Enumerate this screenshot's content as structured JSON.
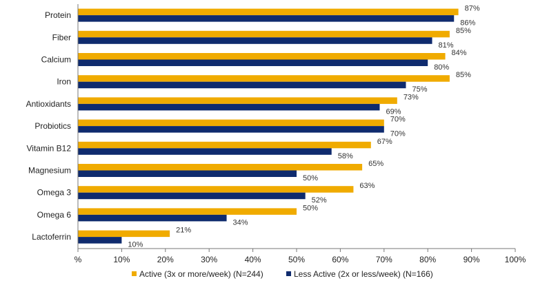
{
  "chart_data": {
    "type": "bar",
    "orientation": "horizontal",
    "categories": [
      "Protein",
      "Fiber",
      "Calcium",
      "Iron",
      "Antioxidants",
      "Probiotics",
      "Vitamin B12",
      "Magnesium",
      "Omega 3",
      "Omega 6",
      "Lactoferrin"
    ],
    "series": [
      {
        "name": "Active (3x or more/week) (N=244)",
        "color": "#f0ab00",
        "values": [
          87,
          85,
          84,
          85,
          73,
          70,
          67,
          65,
          63,
          50,
          21
        ],
        "labels": [
          "87%",
          "85%",
          "84%",
          "85%",
          "73%",
          "70%",
          "67%",
          "65%",
          "63%",
          "50%",
          "21%"
        ]
      },
      {
        "name": "Less Active (2x or less/week) (N=166)",
        "color": "#0f2b6e",
        "values": [
          86,
          81,
          80,
          75,
          69,
          70,
          58,
          50,
          52,
          34,
          10
        ],
        "labels": [
          "86%",
          "81%",
          "80%",
          "75%",
          "69%",
          "70%",
          "58%",
          "50%",
          "52%",
          "34%",
          "10%"
        ]
      }
    ],
    "xlim": [
      0,
      100
    ],
    "x_ticks": [
      0,
      10,
      20,
      30,
      40,
      50,
      60,
      70,
      80,
      90,
      100
    ],
    "x_tick_labels": [
      "%",
      "10%",
      "20%",
      "30%",
      "40%",
      "50%",
      "60%",
      "70%",
      "80%",
      "90%",
      "100%"
    ],
    "grid": false,
    "legend_position": "bottom"
  }
}
